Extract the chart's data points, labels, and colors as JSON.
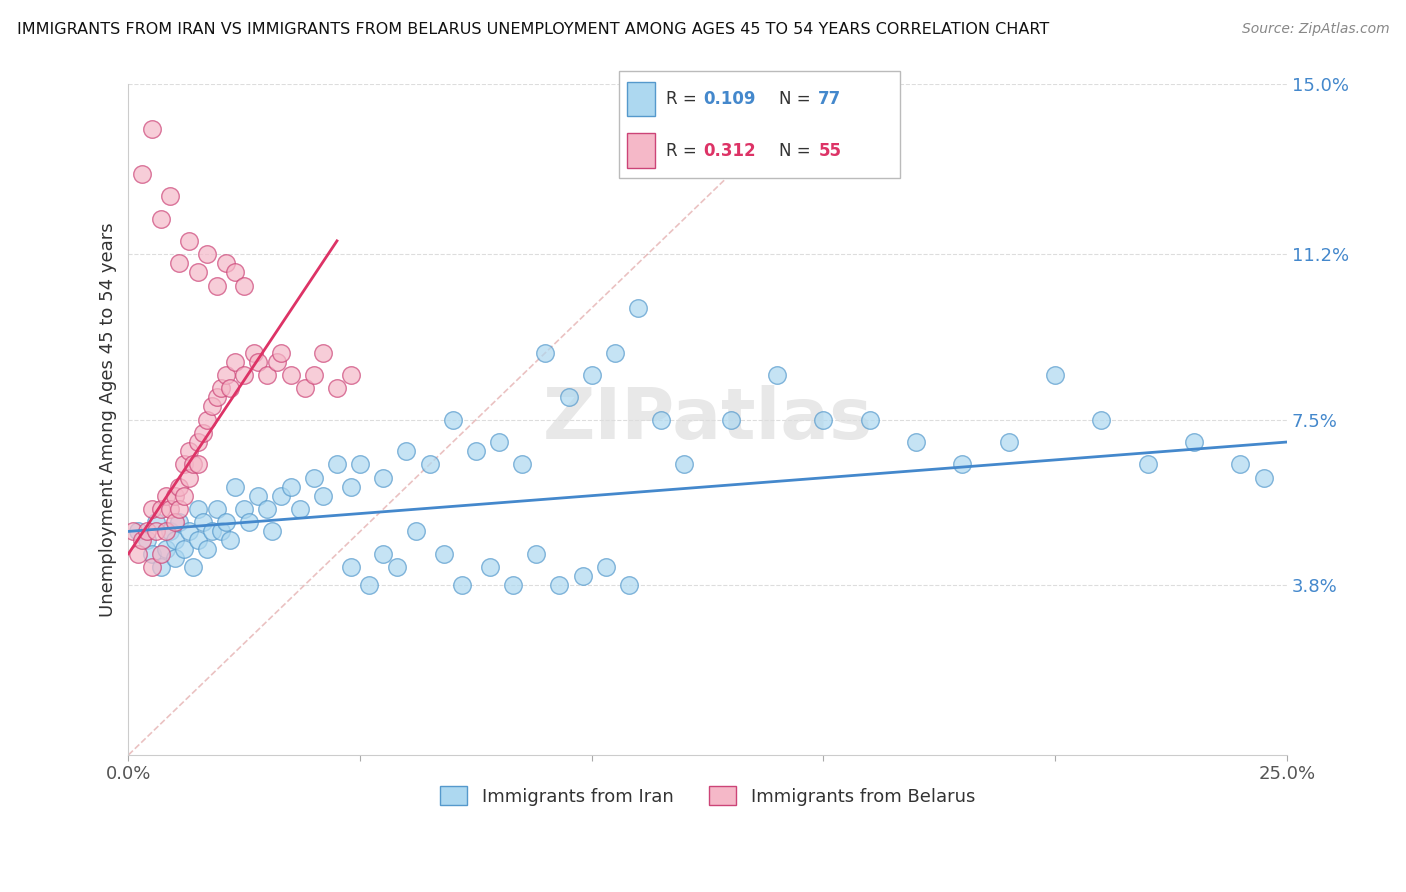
{
  "title": "IMMIGRANTS FROM IRAN VS IMMIGRANTS FROM BELARUS UNEMPLOYMENT AMONG AGES 45 TO 54 YEARS CORRELATION CHART",
  "source": "Source: ZipAtlas.com",
  "ylabel_label": "Unemployment Among Ages 45 to 54 years",
  "xlim": [
    0,
    0.25
  ],
  "ylim": [
    0,
    0.15
  ],
  "ytick_positions": [
    0.038,
    0.075,
    0.112,
    0.15
  ],
  "ytick_labels": [
    "3.8%",
    "7.5%",
    "11.2%",
    "15.0%"
  ],
  "legend_iran_R": "0.109",
  "legend_iran_N": "77",
  "legend_belarus_R": "0.312",
  "legend_belarus_N": "55",
  "color_iran_fill": "#ADD8F0",
  "color_iran_edge": "#5599CC",
  "color_belarus_fill": "#F5B8C8",
  "color_belarus_edge": "#CC4477",
  "color_iran_line": "#4488CC",
  "color_belarus_line": "#DD3366",
  "color_diag": "#DD9999",
  "color_grid": "#DDDDDD",
  "watermark": "ZIPatlas",
  "iran_x": [
    0.002,
    0.004,
    0.005,
    0.006,
    0.007,
    0.008,
    0.009,
    0.01,
    0.01,
    0.011,
    0.012,
    0.013,
    0.014,
    0.015,
    0.015,
    0.016,
    0.017,
    0.018,
    0.019,
    0.02,
    0.021,
    0.022,
    0.023,
    0.025,
    0.026,
    0.028,
    0.03,
    0.031,
    0.033,
    0.035,
    0.037,
    0.04,
    0.042,
    0.045,
    0.048,
    0.05,
    0.055,
    0.06,
    0.065,
    0.07,
    0.075,
    0.08,
    0.085,
    0.09,
    0.095,
    0.1,
    0.105,
    0.11,
    0.115,
    0.12,
    0.13,
    0.14,
    0.15,
    0.16,
    0.17,
    0.18,
    0.19,
    0.2,
    0.21,
    0.22,
    0.23,
    0.24,
    0.245,
    0.048,
    0.052,
    0.055,
    0.058,
    0.062,
    0.068,
    0.072,
    0.078,
    0.083,
    0.088,
    0.093,
    0.098,
    0.103,
    0.108
  ],
  "iran_y": [
    0.05,
    0.048,
    0.045,
    0.052,
    0.042,
    0.046,
    0.05,
    0.048,
    0.044,
    0.052,
    0.046,
    0.05,
    0.042,
    0.055,
    0.048,
    0.052,
    0.046,
    0.05,
    0.055,
    0.05,
    0.052,
    0.048,
    0.06,
    0.055,
    0.052,
    0.058,
    0.055,
    0.05,
    0.058,
    0.06,
    0.055,
    0.062,
    0.058,
    0.065,
    0.06,
    0.065,
    0.062,
    0.068,
    0.065,
    0.075,
    0.068,
    0.07,
    0.065,
    0.09,
    0.08,
    0.085,
    0.09,
    0.1,
    0.075,
    0.065,
    0.075,
    0.085,
    0.075,
    0.075,
    0.07,
    0.065,
    0.07,
    0.085,
    0.075,
    0.065,
    0.07,
    0.065,
    0.062,
    0.042,
    0.038,
    0.045,
    0.042,
    0.05,
    0.045,
    0.038,
    0.042,
    0.038,
    0.045,
    0.038,
    0.04,
    0.042,
    0.038
  ],
  "belarus_x": [
    0.001,
    0.002,
    0.003,
    0.004,
    0.005,
    0.005,
    0.006,
    0.007,
    0.007,
    0.008,
    0.008,
    0.009,
    0.01,
    0.01,
    0.011,
    0.011,
    0.012,
    0.012,
    0.013,
    0.013,
    0.014,
    0.015,
    0.015,
    0.016,
    0.017,
    0.018,
    0.019,
    0.02,
    0.021,
    0.022,
    0.023,
    0.025,
    0.027,
    0.028,
    0.03,
    0.032,
    0.033,
    0.035,
    0.038,
    0.04,
    0.042,
    0.045,
    0.048,
    0.003,
    0.005,
    0.007,
    0.009,
    0.011,
    0.013,
    0.015,
    0.017,
    0.019,
    0.021,
    0.023,
    0.025
  ],
  "belarus_y": [
    0.05,
    0.045,
    0.048,
    0.05,
    0.042,
    0.055,
    0.05,
    0.045,
    0.055,
    0.05,
    0.058,
    0.055,
    0.052,
    0.058,
    0.055,
    0.06,
    0.058,
    0.065,
    0.062,
    0.068,
    0.065,
    0.07,
    0.065,
    0.072,
    0.075,
    0.078,
    0.08,
    0.082,
    0.085,
    0.082,
    0.088,
    0.085,
    0.09,
    0.088,
    0.085,
    0.088,
    0.09,
    0.085,
    0.082,
    0.085,
    0.09,
    0.082,
    0.085,
    0.13,
    0.14,
    0.12,
    0.125,
    0.11,
    0.115,
    0.108,
    0.112,
    0.105,
    0.11,
    0.108,
    0.105
  ]
}
